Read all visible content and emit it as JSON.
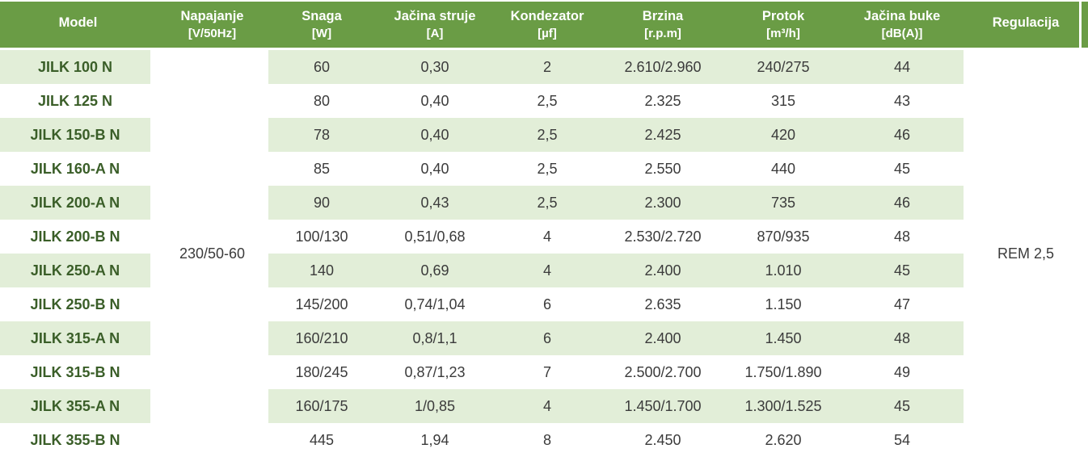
{
  "table": {
    "columns": [
      {
        "key": "model",
        "label": "Model",
        "unit": ""
      },
      {
        "key": "napajanje",
        "label": "Napajanje",
        "unit": "[V/50Hz]"
      },
      {
        "key": "snaga",
        "label": "Snaga",
        "unit": "[W]"
      },
      {
        "key": "jacina_struje",
        "label": "Jačina struje",
        "unit": "[A]"
      },
      {
        "key": "kondezator",
        "label": "Kondezator",
        "unit": "[µf]"
      },
      {
        "key": "brzina",
        "label": "Brzina",
        "unit": "[r.p.m]"
      },
      {
        "key": "protok",
        "label": "Protok",
        "unit": "[m³/h]"
      },
      {
        "key": "jacina_buke",
        "label": "Jačina buke",
        "unit": "[dB(A)]"
      },
      {
        "key": "regulacija",
        "label": "Regulacija",
        "unit": ""
      }
    ],
    "napajanje_value": "230/50-60",
    "regulacija_value": "REM 2,5",
    "rows": [
      {
        "model": "JILK 100 N",
        "snaga": "60",
        "jacina_struje": "0,30",
        "kondezator": "2",
        "brzina": "2.610/2.960",
        "protok": "240/275",
        "jacina_buke": "44"
      },
      {
        "model": "JILK 125 N",
        "snaga": "80",
        "jacina_struje": "0,40",
        "kondezator": "2,5",
        "brzina": "2.325",
        "protok": "315",
        "jacina_buke": "43"
      },
      {
        "model": "JILK 150-B N",
        "snaga": "78",
        "jacina_struje": "0,40",
        "kondezator": "2,5",
        "brzina": "2.425",
        "protok": "420",
        "jacina_buke": "46"
      },
      {
        "model": "JILK 160-A N",
        "snaga": "85",
        "jacina_struje": "0,40",
        "kondezator": "2,5",
        "brzina": "2.550",
        "protok": "440",
        "jacina_buke": "45"
      },
      {
        "model": "JILK 200-A N",
        "snaga": "90",
        "jacina_struje": "0,43",
        "kondezator": "2,5",
        "brzina": "2.300",
        "protok": "735",
        "jacina_buke": "46"
      },
      {
        "model": "JILK 200-B N",
        "snaga": "100/130",
        "jacina_struje": "0,51/0,68",
        "kondezator": "4",
        "brzina": "2.530/2.720",
        "protok": "870/935",
        "jacina_buke": "48"
      },
      {
        "model": "JILK 250-A N",
        "snaga": "140",
        "jacina_struje": "0,69",
        "kondezator": "4",
        "brzina": "2.400",
        "protok": "1.010",
        "jacina_buke": "45"
      },
      {
        "model": "JILK 250-B N",
        "snaga": "145/200",
        "jacina_struje": "0,74/1,04",
        "kondezator": "6",
        "brzina": "2.635",
        "protok": "1.150",
        "jacina_buke": "47"
      },
      {
        "model": "JILK 315-A N",
        "snaga": "160/210",
        "jacina_struje": "0,8/1,1",
        "kondezator": "6",
        "brzina": "2.400",
        "protok": "1.450",
        "jacina_buke": "48"
      },
      {
        "model": "JILK 315-B N",
        "snaga": "180/245",
        "jacina_struje": "0,87/1,23",
        "kondezator": "7",
        "brzina": "2.500/2.700",
        "protok": "1.750/1.890",
        "jacina_buke": "49"
      },
      {
        "model": "JILK 355-A N",
        "snaga": "160/175",
        "jacina_struje": "1/0,85",
        "kondezator": "4",
        "brzina": "1.450/1.700",
        "protok": "1.300/1.525",
        "jacina_buke": "45"
      },
      {
        "model": "JILK 355-B N",
        "snaga": "445",
        "jacina_struje": "1,94",
        "kondezator": "8",
        "brzina": "2.450",
        "protok": "2.620",
        "jacina_buke": "54"
      }
    ],
    "colors": {
      "header_bg": "#6a9c45",
      "header_text": "#ffffff",
      "stripe_bg": "#e2eed8",
      "model_text": "#3a5e28",
      "body_text": "#3b3b3b"
    }
  }
}
